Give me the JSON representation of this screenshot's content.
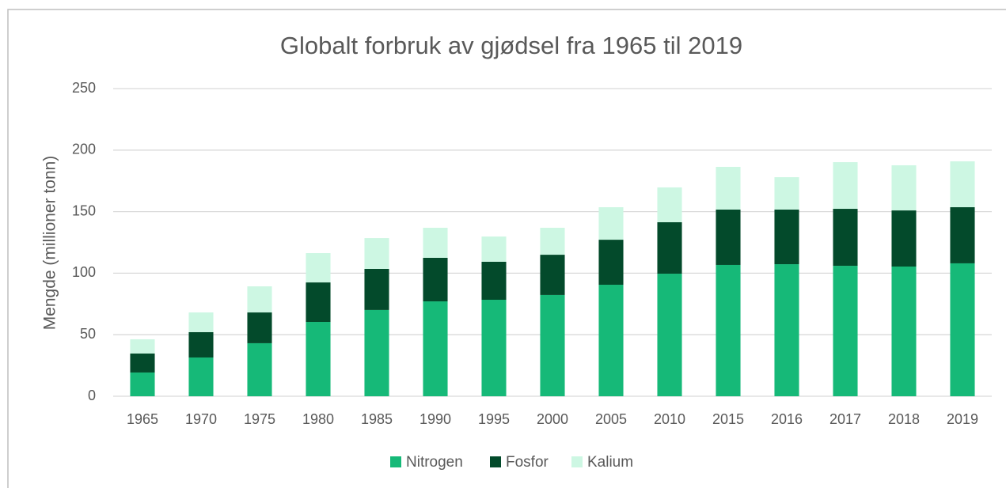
{
  "chart_data": {
    "type": "bar",
    "stacked": true,
    "title": "Globalt forbruk av gjødsel fra 1965 til 2019",
    "y_label": "Mengde (millioner tonn)",
    "categories": [
      "1965",
      "1970",
      "1975",
      "1980",
      "1985",
      "1990",
      "1995",
      "2000",
      "2005",
      "2010",
      "2015",
      "2016",
      "2017",
      "2018",
      "2019"
    ],
    "series": [
      {
        "name": "Nitrogen",
        "color": "#16b978",
        "values": [
          19.3,
          31.5,
          43.1,
          60.4,
          70.1,
          77.1,
          78.4,
          82.3,
          90.6,
          99.6,
          106.7,
          107.3,
          106.0,
          105.4,
          108.0
        ]
      },
      {
        "name": "Fosfor",
        "color": "#034a2b",
        "values": [
          15.4,
          20.6,
          25.0,
          32.1,
          33.4,
          35.4,
          30.9,
          32.7,
          36.6,
          41.8,
          45.0,
          44.4,
          46.3,
          45.6,
          45.6
        ]
      },
      {
        "name": "Kalium",
        "color": "#cdf7e3",
        "values": [
          11.6,
          16.0,
          21.2,
          23.8,
          25.0,
          24.4,
          20.5,
          21.9,
          26.4,
          28.3,
          34.7,
          26.3,
          37.9,
          36.7,
          37.3
        ]
      }
    ],
    "ylim": [
      0,
      250
    ],
    "yticks": [
      0,
      50,
      100,
      150,
      200,
      250
    ],
    "grid": true,
    "legend": "bottom"
  }
}
